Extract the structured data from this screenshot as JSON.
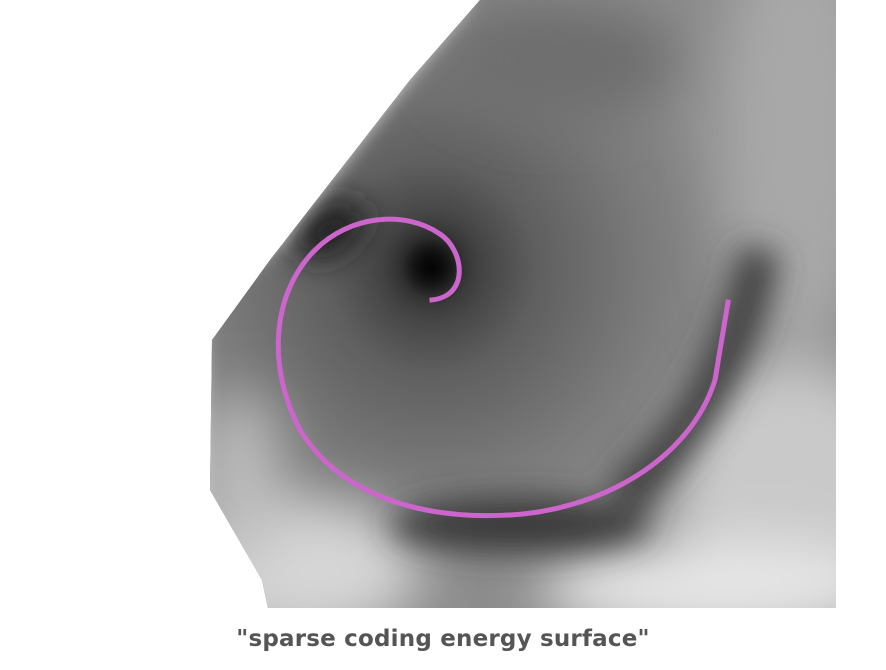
{
  "image": {
    "subject": "grayscale energy surface with a spiral trajectory",
    "spiral_color": "#cc66cc",
    "caption_color": "#555555"
  },
  "caption": "\"sparse coding energy surface\""
}
